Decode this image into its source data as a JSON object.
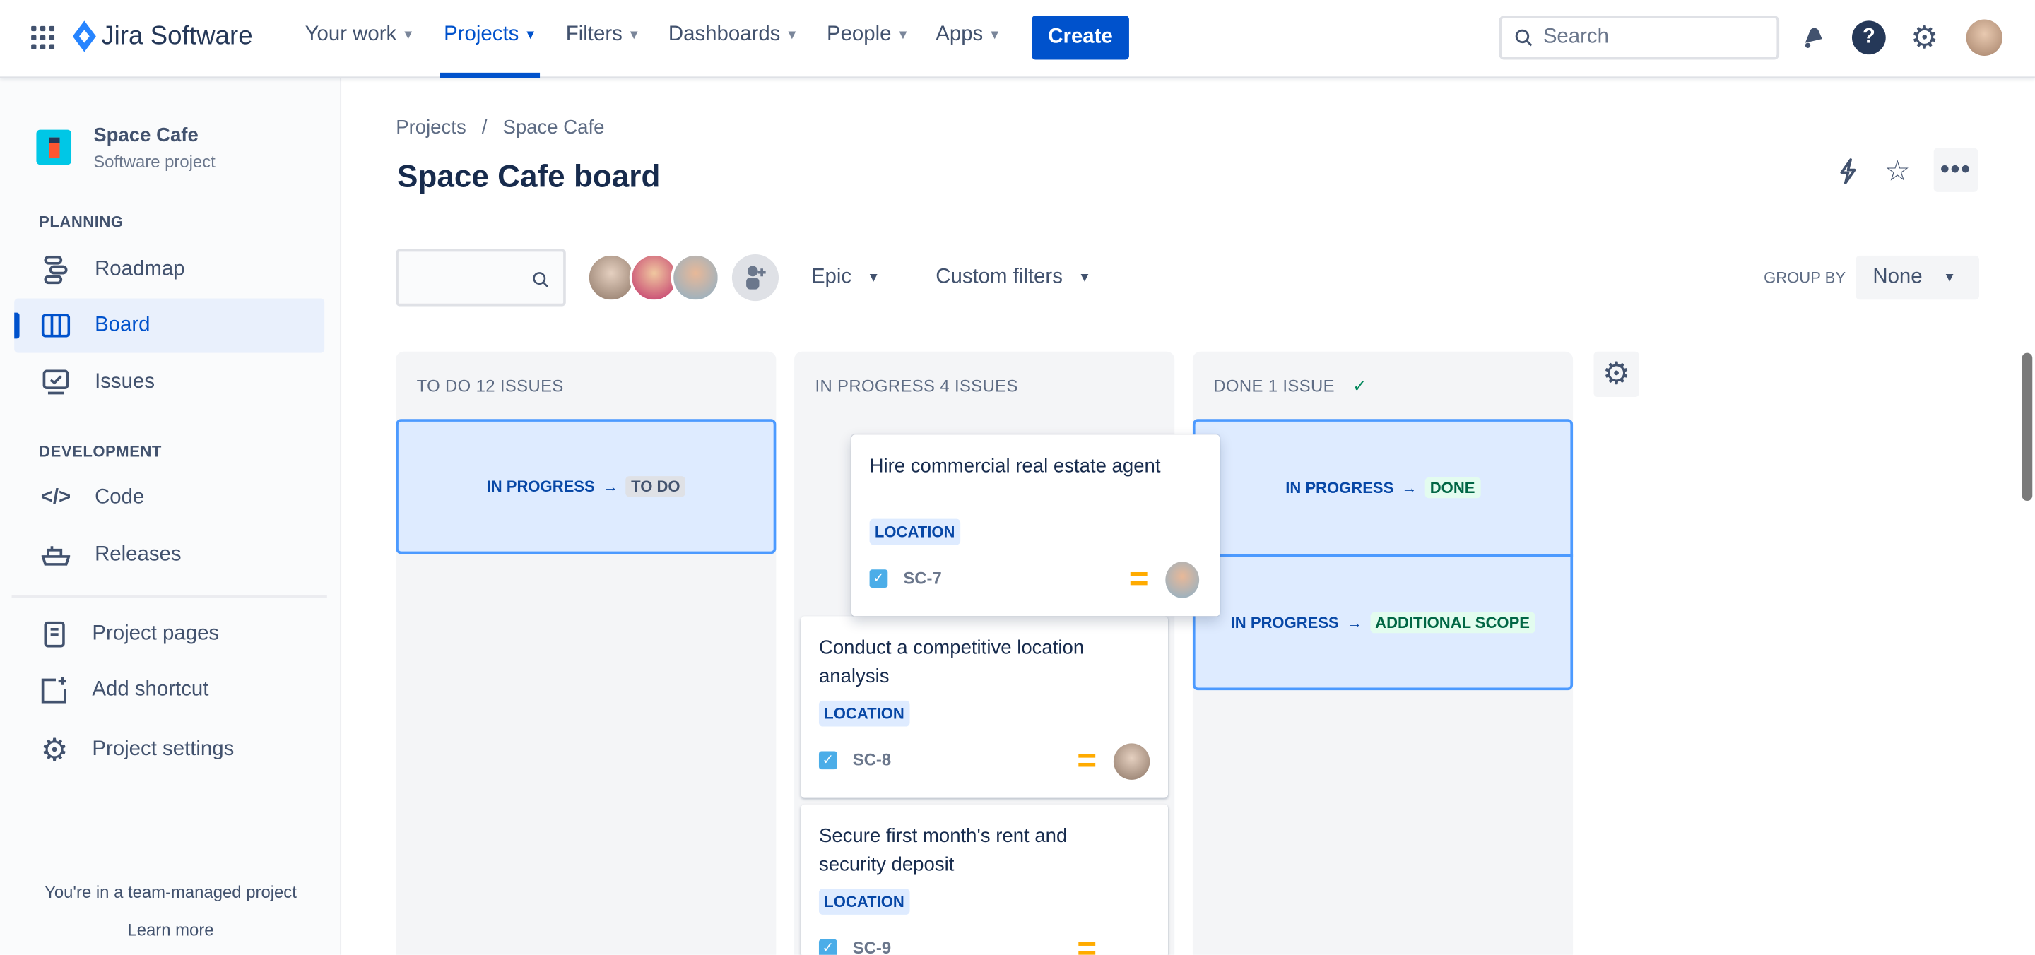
{
  "nav": {
    "app_name": "Jira Software",
    "items": [
      {
        "label": "Your work"
      },
      {
        "label": "Projects",
        "active": true
      },
      {
        "label": "Filters"
      },
      {
        "label": "Dashboards"
      },
      {
        "label": "People"
      },
      {
        "label": "Apps"
      }
    ],
    "create_label": "Create",
    "search_placeholder": "Search",
    "icons": [
      "app-switcher-icon",
      "notifications-icon",
      "help-icon",
      "settings-icon",
      "profile-avatar"
    ]
  },
  "sidebar": {
    "project_name": "Space Cafe",
    "project_type": "Software project",
    "planning_heading": "PLANNING",
    "planning": [
      {
        "label": "Roadmap"
      },
      {
        "label": "Board",
        "selected": true
      },
      {
        "label": "Issues"
      }
    ],
    "development_heading": "DEVELOPMENT",
    "development": [
      {
        "label": "Code"
      },
      {
        "label": "Releases"
      }
    ],
    "other": [
      {
        "label": "Project pages"
      },
      {
        "label": "Add shortcut"
      },
      {
        "label": "Project settings"
      }
    ],
    "footer_text": "You're in a team-managed project",
    "footer_link": "Learn more"
  },
  "page": {
    "breadcrumb": [
      "Projects",
      "Space Cafe"
    ],
    "breadcrumb_sep": "/",
    "title": "Space Cafe board"
  },
  "toolbar": {
    "epic_label": "Epic",
    "custom_filters_label": "Custom filters",
    "group_by_label": "GROUP BY",
    "group_by_value": "None"
  },
  "columns": [
    {
      "title": "TO DO 12 ISSUES",
      "drop_zones": [
        {
          "from": "IN PROGRESS",
          "to": "TO DO"
        }
      ]
    },
    {
      "title": "IN PROGRESS 4 ISSUES"
    },
    {
      "title": "DONE 1 ISSUE",
      "check": "✓",
      "drop_zones": [
        {
          "from": "IN PROGRESS",
          "to": "DONE"
        },
        {
          "from": "IN PROGRESS",
          "to": "ADDITIONAL SCOPE"
        }
      ]
    }
  ],
  "cards": [
    {
      "title": "Hire commercial real estate agent",
      "label": "LOCATION",
      "key": "SC-7",
      "priority": "medium",
      "dragging": true
    },
    {
      "title": "Conduct a competitive location analysis",
      "label": "LOCATION",
      "key": "SC-8",
      "priority": "medium"
    },
    {
      "title": "Secure first month's rent and security deposit",
      "label": "LOCATION",
      "key": "SC-9",
      "priority": "medium"
    }
  ],
  "arrow": "→",
  "colors": {
    "brand": "#0052cc",
    "drop_zone": "#deebff",
    "drop_border": "#4c9aff",
    "done_lozenge": "#e3fcef",
    "priority_medium": "#ffab00"
  }
}
